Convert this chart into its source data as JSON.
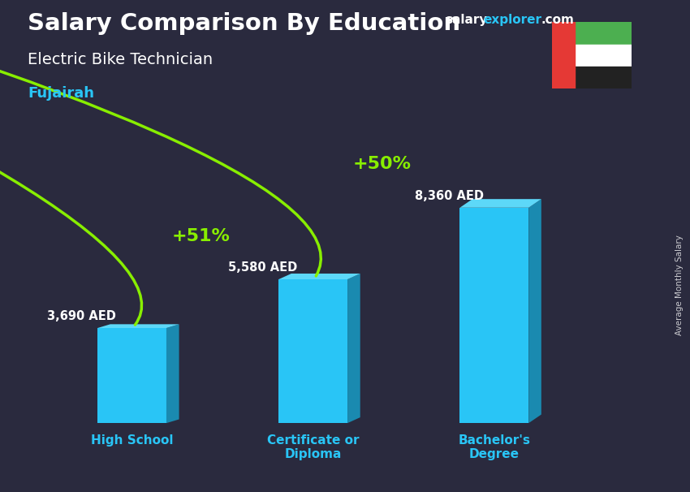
{
  "title_main": "Salary Comparison By Education",
  "subtitle": "Electric Bike Technician",
  "location": "Fujairah",
  "categories": [
    "High School",
    "Certificate or\nDiploma",
    "Bachelor's\nDegree"
  ],
  "values": [
    3690,
    5580,
    8360
  ],
  "value_labels": [
    "3,690 AED",
    "5,580 AED",
    "8,360 AED"
  ],
  "bar_color_front": "#29c5f6",
  "bar_color_side": "#1a8ab0",
  "bar_color_top": "#5dd8f8",
  "bg_color": "#2a2a3e",
  "pct_labels": [
    "+51%",
    "+50%"
  ],
  "pct_color": "#88ee00",
  "arrow_color": "#88ee00",
  "ylabel_side": "Average Monthly Salary",
  "title_color": "#ffffff",
  "subtitle_color": "#ffffff",
  "location_color": "#29c5f6",
  "category_color": "#29c5f6",
  "value_color": "#ffffff",
  "ylim": [
    0,
    10500
  ],
  "bar_width": 0.38,
  "bar_depth": 0.07,
  "bar_depth_v": 0.04,
  "x_positions": [
    0,
    1,
    2
  ],
  "flag_green": "#4caf50",
  "flag_white": "#ffffff",
  "flag_black": "#333333",
  "flag_red": "#e53935"
}
